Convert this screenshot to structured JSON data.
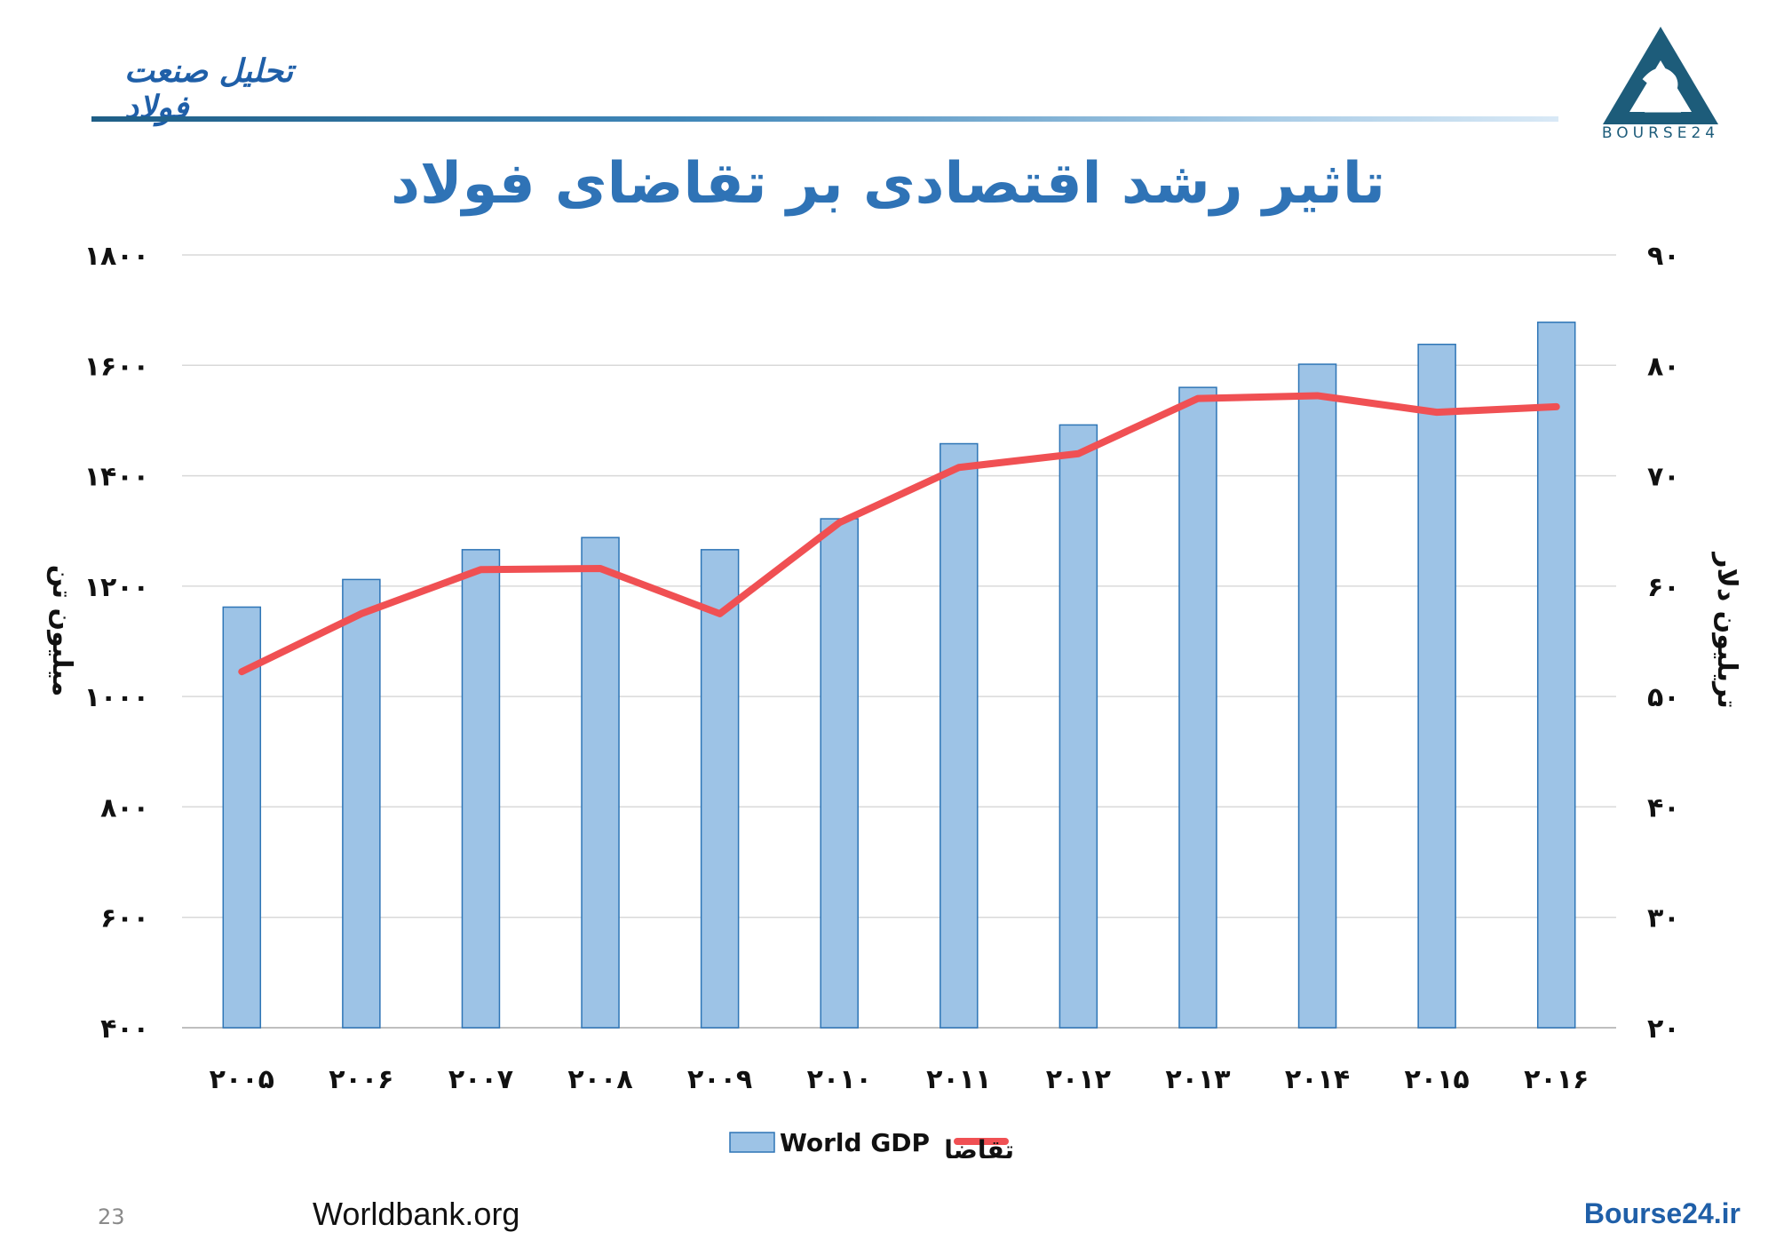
{
  "header": {
    "brand_text": "تحلیل صنعت فولاد",
    "logo_text": "BOURSE24"
  },
  "chart_data": {
    "type": "bar",
    "title": "تاثیر رشد اقتصادی بر تقاضای فولاد",
    "categories": [
      "۲۰۰۵",
      "۲۰۰۶",
      "۲۰۰۷",
      "۲۰۰۸",
      "۲۰۰۹",
      "۲۰۱۰",
      "۲۰۱۱",
      "۲۰۱۲",
      "۲۰۱۳",
      "۲۰۱۴",
      "۲۰۱۵",
      "۲۰۱۶"
    ],
    "series": [
      {
        "name": "World GDP",
        "type": "bar",
        "axis": "right",
        "color": "#9dc3e6",
        "values": [
          58.1,
          60.6,
          63.3,
          64.4,
          63.3,
          66.1,
          72.9,
          74.6,
          78.0,
          80.1,
          81.9,
          83.9
        ]
      },
      {
        "name": "تقاضا",
        "type": "line",
        "axis": "left",
        "color": "#f05053",
        "values": [
          1045,
          1150,
          1230,
          1232,
          1150,
          1315,
          1415,
          1440,
          1540,
          1545,
          1515,
          1525
        ]
      }
    ],
    "y_left": {
      "label": "میلیون تن",
      "ylim": [
        400,
        1800
      ],
      "ticks": [
        400,
        600,
        800,
        1000,
        1200,
        1400,
        1600,
        1800
      ],
      "tick_labels": [
        "۴۰۰",
        "۶۰۰",
        "۸۰۰",
        "۱۰۰۰",
        "۱۲۰۰",
        "۱۴۰۰",
        "۱۶۰۰",
        "۱۸۰۰"
      ]
    },
    "y_right": {
      "label": "تریلیون دلار",
      "ylim": [
        20,
        90
      ],
      "ticks": [
        20,
        30,
        40,
        50,
        60,
        70,
        80,
        90
      ],
      "tick_labels": [
        "۲۰",
        "۳۰",
        "۴۰",
        "۵۰",
        "۶۰",
        "۷۰",
        "۸۰",
        "۹۰"
      ]
    },
    "grid": true,
    "legend": "bottom"
  },
  "footer": {
    "page_number": "23",
    "source": "Worldbank.org",
    "site": "Bourse24.ir"
  }
}
